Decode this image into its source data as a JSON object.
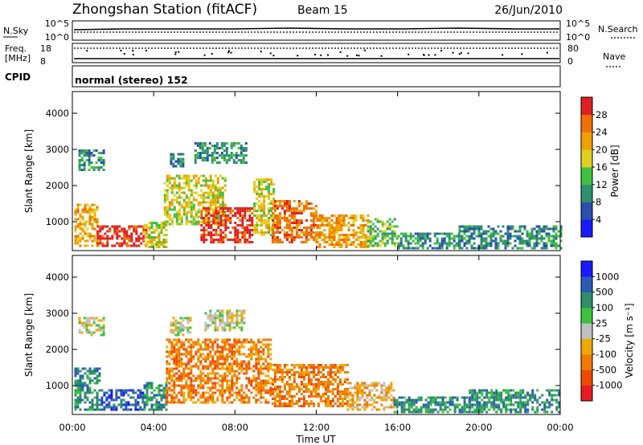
{
  "header": {
    "station": "Zhongshan Station (fitACF)",
    "beam": "Beam 15",
    "date": "26/Jun/2010"
  },
  "summary": {
    "nsky_label": "N.Sky",
    "nsearch_label": "N.Search",
    "nsky_ticks": [
      "10^5",
      "10^0"
    ],
    "nsearch_ticks": [
      "10^5",
      "10^0"
    ],
    "freq_label_line1": "Freq.",
    "freq_label_line2": "[MHz]",
    "freq_ticks": [
      "18",
      "8"
    ],
    "nave_label": "Nave",
    "nave_ticks": [
      "80",
      "0"
    ],
    "cpid_label": "CPID",
    "cpid_text": "normal (stereo) 152"
  },
  "colors": {
    "power_scale": [
      "#1a1aff",
      "#2a4fb0",
      "#2f8f70",
      "#3fc040",
      "#e0d020",
      "#f0a000",
      "#f07000",
      "#e02020"
    ],
    "velocity_scale": [
      "#e81c1c",
      "#f04a00",
      "#f07a00",
      "#f0a800",
      "#c0c0c0",
      "#3cc23c",
      "#2e8f6a",
      "#2a5cb5",
      "#1a1aff"
    ]
  },
  "chart_data": [
    {
      "type": "heatmap",
      "name": "power",
      "xlabel": "",
      "ylabel": "Slant Range [km]",
      "colorbar_label": "Power [dB]",
      "colorbar_ticks": [
        "28",
        "24",
        "20",
        "16",
        "12",
        "8",
        "4"
      ],
      "x_ticks": [
        "00:00",
        "04:00",
        "08:00",
        "12:00",
        "16:00",
        "20:00",
        "00:00"
      ],
      "y_ticks": [
        "4000",
        "3000",
        "2000",
        "1000"
      ],
      "xlim": [
        0,
        24
      ],
      "ylim": [
        200,
        4600
      ],
      "x_unit": "hours UT",
      "cells": [
        {
          "t": [
            0.1,
            1.2
          ],
          "r": [
            300,
            1500
          ],
          "level": 5
        },
        {
          "t": [
            0.3,
            1.5
          ],
          "r": [
            2400,
            3000
          ],
          "level": 2
        },
        {
          "t": [
            1.2,
            3.6
          ],
          "r": [
            300,
            900
          ],
          "level": 7
        },
        {
          "t": [
            3.5,
            4.6
          ],
          "r": [
            300,
            1000
          ],
          "level": 4
        },
        {
          "t": [
            4.5,
            7.5
          ],
          "r": [
            900,
            2300
          ],
          "level": 4
        },
        {
          "t": [
            4.8,
            5.5
          ],
          "r": [
            2500,
            2900
          ],
          "level": 2
        },
        {
          "t": [
            6.0,
            8.5
          ],
          "r": [
            2600,
            3200
          ],
          "level": 2
        },
        {
          "t": [
            6.3,
            8.9
          ],
          "r": [
            400,
            1400
          ],
          "level": 7
        },
        {
          "t": [
            8.9,
            9.9
          ],
          "r": [
            600,
            2200
          ],
          "level": 4
        },
        {
          "t": [
            9.8,
            12.0
          ],
          "r": [
            400,
            1600
          ],
          "level": 6
        },
        {
          "t": [
            12.0,
            14.5
          ],
          "r": [
            300,
            1200
          ],
          "level": 5
        },
        {
          "t": [
            14.5,
            16.0
          ],
          "r": [
            300,
            1100
          ],
          "level": 3
        },
        {
          "t": [
            16.0,
            19.0
          ],
          "r": [
            250,
            700
          ],
          "level": 2
        },
        {
          "t": [
            19.0,
            24.0
          ],
          "r": [
            250,
            900
          ],
          "level": 2
        }
      ]
    },
    {
      "type": "heatmap",
      "name": "velocity",
      "xlabel": "Time UT",
      "ylabel": "Slant Range [km]",
      "colorbar_label": "Velocity [m s⁻¹]",
      "colorbar_ticks": [
        "1000",
        "500",
        "100",
        "25",
        "-25",
        "-100",
        "-500",
        "-1000"
      ],
      "x_ticks": [
        "00:00",
        "04:00",
        "08:00",
        "12:00",
        "16:00",
        "20:00",
        "00:00"
      ],
      "y_ticks": [
        "4000",
        "3000",
        "2000",
        "1000"
      ],
      "xlim": [
        0,
        24
      ],
      "ylim": [
        200,
        4600
      ],
      "x_unit": "hours UT",
      "cells": [
        {
          "t": [
            0.1,
            1.4
          ],
          "r": [
            300,
            1500
          ],
          "level": 6
        },
        {
          "t": [
            0.3,
            1.5
          ],
          "r": [
            2400,
            2900
          ],
          "level": 4
        },
        {
          "t": [
            1.4,
            3.5
          ],
          "r": [
            300,
            900
          ],
          "level": 7
        },
        {
          "t": [
            3.5,
            4.6
          ],
          "r": [
            300,
            1100
          ],
          "level": 6
        },
        {
          "t": [
            4.6,
            9.8
          ],
          "r": [
            500,
            2300
          ],
          "level": 2
        },
        {
          "t": [
            4.8,
            5.8
          ],
          "r": [
            2400,
            2900
          ],
          "level": 4
        },
        {
          "t": [
            6.5,
            8.5
          ],
          "r": [
            2500,
            3100
          ],
          "level": 4
        },
        {
          "t": [
            9.8,
            13.5
          ],
          "r": [
            400,
            1600
          ],
          "level": 2
        },
        {
          "t": [
            13.5,
            15.8
          ],
          "r": [
            300,
            1100
          ],
          "level": 3
        },
        {
          "t": [
            15.8,
            19.5
          ],
          "r": [
            250,
            700
          ],
          "level": 6
        },
        {
          "t": [
            19.5,
            24.0
          ],
          "r": [
            250,
            900
          ],
          "level": 6
        }
      ]
    }
  ]
}
